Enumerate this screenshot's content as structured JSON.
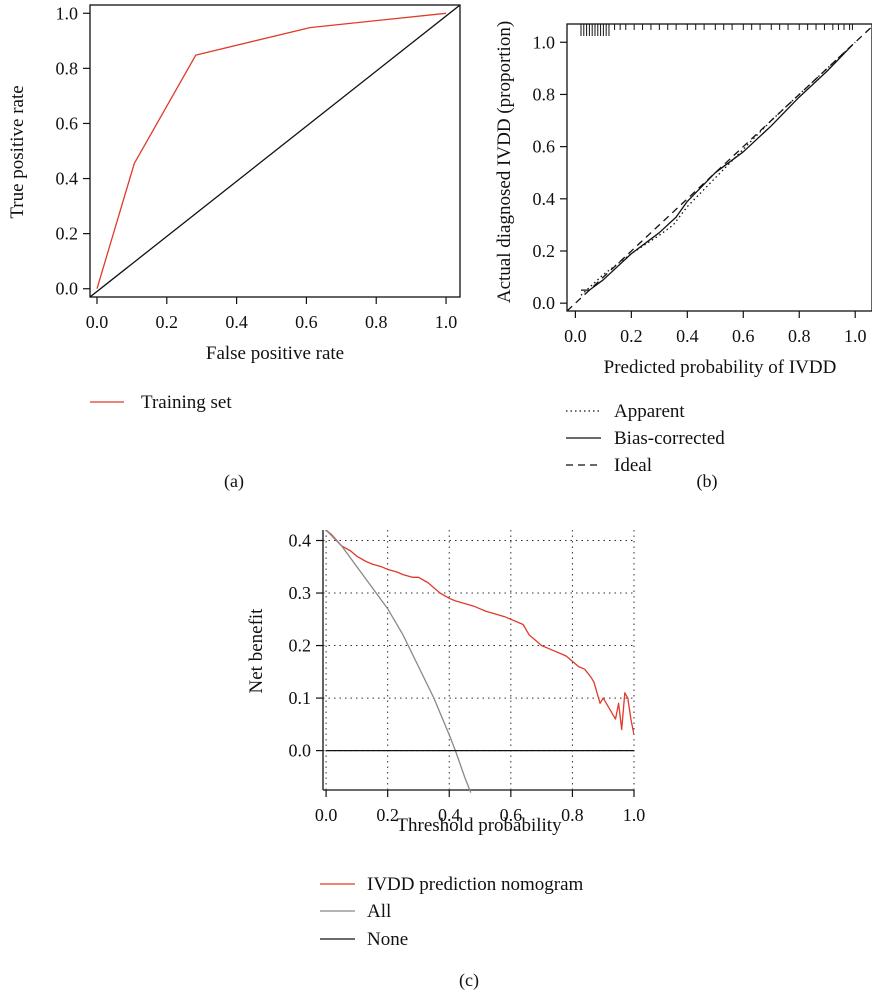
{
  "panels": {
    "a": {
      "label": "(a)"
    },
    "b": {
      "label": "(b)"
    },
    "c": {
      "label": "(c)"
    }
  },
  "chart_data": [
    {
      "id": "a",
      "type": "line",
      "title": "",
      "xlabel": "False positive rate",
      "ylabel": "True positive rate",
      "xlim": [
        -0.02,
        1.04
      ],
      "ylim": [
        -0.03,
        1.03
      ],
      "xticks": [
        "0.0",
        "0.2",
        "0.4",
        "0.6",
        "0.8",
        "1.0"
      ],
      "yticks": [
        "0.0",
        "0.2",
        "0.4",
        "0.6",
        "0.8",
        "1.0"
      ],
      "grid": false,
      "legend_position": "bottom-left",
      "series": [
        {
          "name": "Training set",
          "color": "#e03a2a",
          "x": [
            0.0,
            0.107,
            0.283,
            0.61,
            1.0
          ],
          "y": [
            0.0,
            0.455,
            0.848,
            0.948,
            1.0
          ]
        }
      ],
      "reference_line": {
        "color": "#111111",
        "x": [
          -0.02,
          1.04
        ],
        "y": [
          -0.03,
          1.03
        ]
      }
    },
    {
      "id": "b",
      "type": "line",
      "title": "",
      "xlabel": "Predicted probability of IVDD",
      "ylabel": "Actual diagnosed IVDD (proportion)",
      "xlim": [
        -0.03,
        1.06
      ],
      "ylim": [
        -0.03,
        1.07
      ],
      "xticks": [
        "0.0",
        "0.2",
        "0.4",
        "0.6",
        "0.8",
        "1.0"
      ],
      "yticks": [
        "0.0",
        "0.2",
        "0.4",
        "0.6",
        "0.8",
        "1.0"
      ],
      "grid": false,
      "legend_position": "bottom-left",
      "series": [
        {
          "name": "Apparent",
          "style": "dotted",
          "x": [
            0.02,
            0.1,
            0.2,
            0.3,
            0.35,
            0.4,
            0.5,
            0.6,
            0.7,
            0.8,
            0.9,
            1.0
          ],
          "y": [
            0.03,
            0.11,
            0.19,
            0.26,
            0.3,
            0.37,
            0.48,
            0.59,
            0.7,
            0.8,
            0.9,
            1.0
          ]
        },
        {
          "name": "Bias-corrected",
          "style": "solid",
          "x": [
            0.02,
            0.05,
            0.1,
            0.2,
            0.3,
            0.36,
            0.4,
            0.5,
            0.6,
            0.7,
            0.8,
            0.9,
            0.99
          ],
          "y": [
            0.05,
            0.05,
            0.09,
            0.19,
            0.27,
            0.33,
            0.39,
            0.5,
            0.58,
            0.68,
            0.79,
            0.89,
            0.99
          ]
        },
        {
          "name": "Ideal",
          "style": "dashed",
          "x": [
            -0.03,
            1.06
          ],
          "y": [
            -0.03,
            1.06
          ]
        }
      ],
      "rug_x": [
        0.02,
        0.03,
        0.04,
        0.05,
        0.06,
        0.07,
        0.08,
        0.09,
        0.1,
        0.11,
        0.12,
        0.14,
        0.16,
        0.18,
        0.21,
        0.24,
        0.27,
        0.3,
        0.33,
        0.36,
        0.4,
        0.43,
        0.46,
        0.5,
        0.53,
        0.56,
        0.6,
        0.63,
        0.66,
        0.7,
        0.73,
        0.76,
        0.8,
        0.83,
        0.86,
        0.89,
        0.92,
        0.94,
        0.96,
        0.98,
        0.99
      ]
    },
    {
      "id": "c",
      "type": "line",
      "title": "",
      "xlabel": "Threshold probability",
      "ylabel": "Net benefit",
      "xlim": [
        -0.01,
        1.0
      ],
      "ylim": [
        -0.075,
        0.42
      ],
      "xticks": [
        "0.0",
        "0.2",
        "0.4",
        "0.6",
        "0.8",
        "1.0"
      ],
      "yticks": [
        "0.0",
        "0.1",
        "0.2",
        "0.3",
        "0.4"
      ],
      "grid": true,
      "legend_position": "bottom",
      "series": [
        {
          "name": "IVDD prediction nomogram",
          "color": "#e03a2a",
          "x": [
            0.0,
            0.02,
            0.05,
            0.08,
            0.1,
            0.13,
            0.15,
            0.18,
            0.2,
            0.23,
            0.25,
            0.28,
            0.3,
            0.33,
            0.35,
            0.37,
            0.4,
            0.42,
            0.45,
            0.48,
            0.5,
            0.52,
            0.55,
            0.58,
            0.6,
            0.62,
            0.64,
            0.66,
            0.68,
            0.7,
            0.72,
            0.74,
            0.76,
            0.78,
            0.8,
            0.82,
            0.84,
            0.86,
            0.87,
            0.88,
            0.89,
            0.9,
            0.91,
            0.92,
            0.93,
            0.94,
            0.95,
            0.96,
            0.97,
            0.98,
            0.99,
            1.0
          ],
          "y": [
            0.42,
            0.41,
            0.39,
            0.38,
            0.37,
            0.36,
            0.355,
            0.35,
            0.345,
            0.34,
            0.335,
            0.33,
            0.33,
            0.32,
            0.31,
            0.3,
            0.29,
            0.285,
            0.28,
            0.275,
            0.27,
            0.265,
            0.26,
            0.255,
            0.25,
            0.245,
            0.24,
            0.22,
            0.21,
            0.2,
            0.195,
            0.19,
            0.185,
            0.18,
            0.17,
            0.16,
            0.155,
            0.14,
            0.13,
            0.11,
            0.09,
            0.1,
            0.09,
            0.08,
            0.07,
            0.06,
            0.09,
            0.04,
            0.11,
            0.1,
            0.06,
            0.03
          ]
        },
        {
          "name": "All",
          "color": "#888888",
          "x": [
            0.0,
            0.05,
            0.1,
            0.15,
            0.2,
            0.25,
            0.3,
            0.35,
            0.4,
            0.42,
            0.45,
            0.47
          ],
          "y": [
            0.42,
            0.39,
            0.35,
            0.31,
            0.27,
            0.22,
            0.16,
            0.1,
            0.03,
            0.0,
            -0.05,
            -0.08
          ]
        },
        {
          "name": "None",
          "color": "#111111",
          "x": [
            0.0,
            1.0
          ],
          "y": [
            0.0,
            0.0
          ]
        }
      ]
    }
  ]
}
